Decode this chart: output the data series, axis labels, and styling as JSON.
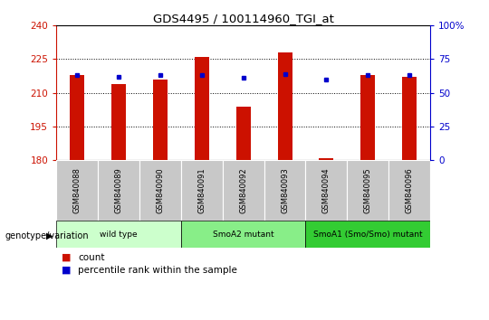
{
  "title": "GDS4495 / 100114960_TGI_at",
  "samples": [
    "GSM840088",
    "GSM840089",
    "GSM840090",
    "GSM840091",
    "GSM840092",
    "GSM840093",
    "GSM840094",
    "GSM840095",
    "GSM840096"
  ],
  "count_values": [
    218,
    214,
    216,
    226,
    204,
    228,
    181,
    218,
    217
  ],
  "percentile_values": [
    63,
    62,
    63,
    63,
    61,
    64,
    60,
    63,
    63
  ],
  "groups": [
    {
      "label": "wild type",
      "start": 0,
      "end": 3,
      "color": "#ccffcc"
    },
    {
      "label": "SmoA2 mutant",
      "start": 3,
      "end": 6,
      "color": "#88ee88"
    },
    {
      "label": "SmoA1 (Smo/Smo) mutant",
      "start": 6,
      "end": 9,
      "color": "#33cc33"
    }
  ],
  "ylim_left": [
    180,
    240
  ],
  "ylim_right": [
    0,
    100
  ],
  "yticks_left": [
    180,
    195,
    210,
    225,
    240
  ],
  "yticks_right": [
    0,
    25,
    50,
    75,
    100
  ],
  "bar_color": "#cc1100",
  "dot_color": "#0000cc",
  "bar_width": 0.35,
  "bar_bottom": 180,
  "grid_yticks": [
    195,
    210,
    225
  ],
  "legend_count_label": "count",
  "legend_percentile_label": "percentile rank within the sample",
  "genotype_label": "genotype/variation",
  "sample_box_color": "#c8c8c8",
  "right_tick_labels": [
    "0",
    "25",
    "50",
    "75",
    "100%"
  ]
}
